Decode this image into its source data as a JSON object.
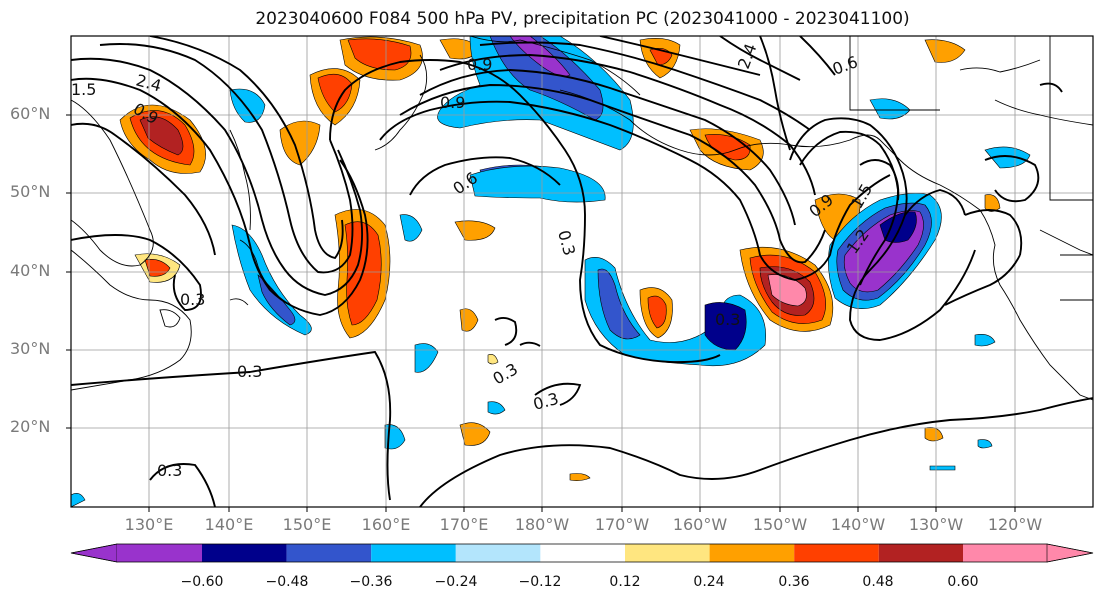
{
  "title": "2023040600 F084 500 hPa PV, precipitation PC (2023041000 - 2023041100)",
  "lat_labels": [
    "60°N",
    "50°N",
    "40°N",
    "30°N",
    "20°N"
  ],
  "lon_labels": [
    "130°E",
    "140°E",
    "150°E",
    "160°E",
    "170°E",
    "180°W",
    "170°W",
    "160°W",
    "150°W",
    "140°W",
    "130°W",
    "120°W"
  ],
  "colorbar": {
    "ticks": [
      "−0.60",
      "−0.48",
      "−0.36",
      "−0.24",
      "−0.12",
      "0.12",
      "0.24",
      "0.36",
      "0.48",
      "0.60"
    ],
    "colors": [
      "#9933cc",
      "#00008b",
      "#3355cc",
      "#00bfff",
      "#b3e5fc",
      "#ffffff",
      "#ffe680",
      "#ffa000",
      "#ff4000",
      "#b22222",
      "#ff88aa"
    ]
  },
  "contour_labels": [
    "0.3",
    "0.3",
    "0.3",
    "0.3",
    "0.3",
    "0.3",
    "0.3",
    "0.6",
    "0.6",
    "0.9",
    "0.9",
    "0.9",
    "0.9",
    "1.5",
    "1.5",
    "2.4",
    "2.4",
    "1.2"
  ],
  "shade_colors": {
    "purple": "#9933cc",
    "navy": "#00008b",
    "blue": "#3355cc",
    "cyan": "#00bfff",
    "lightblue": "#b3e5fc",
    "yellow": "#ffe680",
    "orange": "#ffa000",
    "red": "#ff4000",
    "darkred": "#b22222",
    "pink": "#ff88aa"
  }
}
